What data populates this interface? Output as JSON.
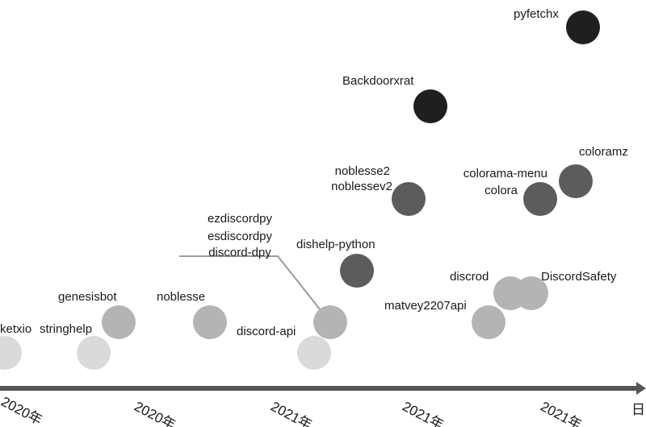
{
  "colors": {
    "darkest": "#1f1f1f",
    "dark": "#5c5c5c",
    "medium": "#b4b4b4",
    "light": "#dadada",
    "axis": "#555555",
    "connector": "#9a9a9a"
  },
  "nodes": [
    {
      "id": "pyfetchx",
      "label": "pyfetchx",
      "shade": "darkest"
    },
    {
      "id": "backdoorxrat",
      "label": "Backdoorxrat",
      "shade": "darkest"
    },
    {
      "id": "noblesse2",
      "labels": [
        "noblesse2",
        "noblessev2"
      ],
      "shade": "dark"
    },
    {
      "id": "colorama",
      "labels": [
        "colorama-menu",
        "colora"
      ],
      "shade": "dark"
    },
    {
      "id": "coloramz",
      "label": "coloramz",
      "shade": "dark"
    },
    {
      "id": "dishelp",
      "label": "dishelp-python",
      "shade": "dark"
    },
    {
      "id": "discord-group",
      "labels": [
        "ezdiscordpy",
        "esdiscordpy",
        "discord-dpy"
      ],
      "shade": "medium"
    },
    {
      "id": "discrod",
      "label": "discrod",
      "shade": "medium"
    },
    {
      "id": "discordsafety",
      "label": "DiscordSafety",
      "shade": "medium"
    },
    {
      "id": "matvey",
      "label": "matvey2207api",
      "shade": "medium"
    },
    {
      "id": "genesisbot",
      "label": "genesisbot",
      "shade": "medium"
    },
    {
      "id": "noblesse",
      "label": "noblesse",
      "shade": "medium"
    },
    {
      "id": "discord-api",
      "label": "discord-api",
      "shade": "light"
    },
    {
      "id": "stringhelp",
      "label": "stringhelp",
      "shade": "light"
    },
    {
      "id": "ketxio",
      "label": "ketxio",
      "shade": "light"
    }
  ],
  "axis": {
    "tick_labels": [
      "2020年",
      "2020年",
      "2021年",
      "2021年",
      "2021年"
    ],
    "end_label": "日"
  }
}
